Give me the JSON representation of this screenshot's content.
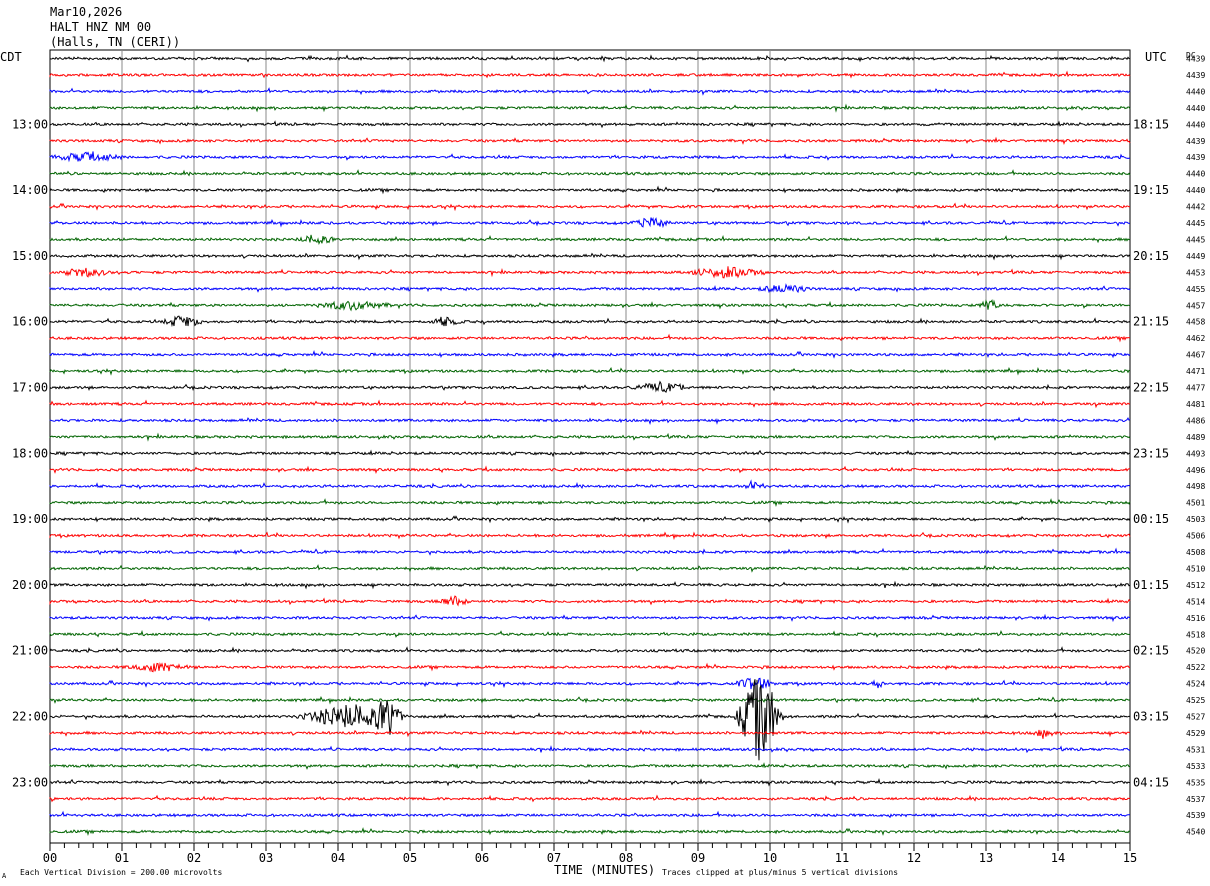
{
  "header": {
    "date": "Mar10,2026",
    "station": "HALT HNZ NM 00",
    "location": "(Halls, TN (CERI))"
  },
  "left_tz": "CDT",
  "right_tz": "UTC",
  "dc_label": "DC",
  "footer": {
    "scale_note": "Each Vertical Division =  200.00 microvolts",
    "clip_note": "Traces clipped at plus/minus 5 vertical divisions",
    "corner_mark": "A"
  },
  "chart_data": {
    "type": "helicorder",
    "xlabel": "TIME (MINUTES)",
    "x_ticks": [
      "00",
      "01",
      "02",
      "03",
      "04",
      "05",
      "06",
      "07",
      "08",
      "09",
      "10",
      "11",
      "12",
      "13",
      "14",
      "15"
    ],
    "xlim": [
      0,
      15
    ],
    "trace_colors": [
      "#000000",
      "#ff0000",
      "#0000ff",
      "#006400"
    ],
    "lines_per_hour": 4,
    "left_hour_labels": [
      "13:00",
      "14:00",
      "15:00",
      "16:00",
      "17:00",
      "18:00",
      "19:00",
      "20:00",
      "21:00",
      "22:00",
      "23:00"
    ],
    "right_hour_labels": [
      "18:15",
      "19:15",
      "20:15",
      "21:15",
      "22:15",
      "23:15",
      "00:15",
      "01:15",
      "02:15",
      "03:15",
      "04:15"
    ],
    "hour_label_first_line": 4,
    "dc_offsets": [
      "4439",
      "4439",
      "4440",
      "4440",
      "4440",
      "4439",
      "4439",
      "4440",
      "4440",
      "4442",
      "4445",
      "4445",
      "4449",
      "4453",
      "4455",
      "4457",
      "4458",
      "4462",
      "4467",
      "4471",
      "4477",
      "4481",
      "4486",
      "4489",
      "4493",
      "4496",
      "4498",
      "4501",
      "4503",
      "4506",
      "4508",
      "4510",
      "4512",
      "4514",
      "4516",
      "4518",
      "4520",
      "4522",
      "4524",
      "4525",
      "4527",
      "4529",
      "4531",
      "4533",
      "4535",
      "4537",
      "4539",
      "4540"
    ],
    "events": [
      {
        "line": 16,
        "minute": 1.85,
        "amp": 6,
        "dur": 0.3
      },
      {
        "line": 16,
        "minute": 5.5,
        "amp": 4,
        "dur": 0.25
      },
      {
        "line": 13,
        "minute": 9.4,
        "amp": 5,
        "dur": 0.6
      },
      {
        "line": 13,
        "minute": 0.5,
        "amp": 4,
        "dur": 0.4
      },
      {
        "line": 10,
        "minute": 8.35,
        "amp": 5,
        "dur": 0.3
      },
      {
        "line": 14,
        "minute": 10.2,
        "amp": 4,
        "dur": 0.4
      },
      {
        "line": 15,
        "minute": 13.05,
        "amp": 6,
        "dur": 0.15
      },
      {
        "line": 15,
        "minute": 4.2,
        "amp": 4,
        "dur": 0.6
      },
      {
        "line": 20,
        "minute": 8.5,
        "amp": 4,
        "dur": 0.5
      },
      {
        "line": 33,
        "minute": 5.6,
        "amp": 5,
        "dur": 0.25
      },
      {
        "line": 37,
        "minute": 1.5,
        "amp": 4,
        "dur": 0.5
      },
      {
        "line": 38,
        "minute": 9.8,
        "amp": 7,
        "dur": 0.3
      },
      {
        "line": 38,
        "minute": 11.5,
        "amp": 4,
        "dur": 0.1
      },
      {
        "line": 40,
        "minute": 9.85,
        "amp": 45,
        "dur": 0.35
      },
      {
        "line": 40,
        "minute": 4.2,
        "amp": 12,
        "dur": 0.8
      },
      {
        "line": 40,
        "minute": 4.7,
        "amp": 18,
        "dur": 0.2
      },
      {
        "line": 6,
        "minute": 0.5,
        "amp": 4,
        "dur": 0.6
      },
      {
        "line": 11,
        "minute": 3.7,
        "amp": 4,
        "dur": 0.3
      },
      {
        "line": 26,
        "minute": 9.8,
        "amp": 3,
        "dur": 0.2
      },
      {
        "line": 41,
        "minute": 13.8,
        "amp": 3,
        "dur": 0.2
      }
    ]
  }
}
